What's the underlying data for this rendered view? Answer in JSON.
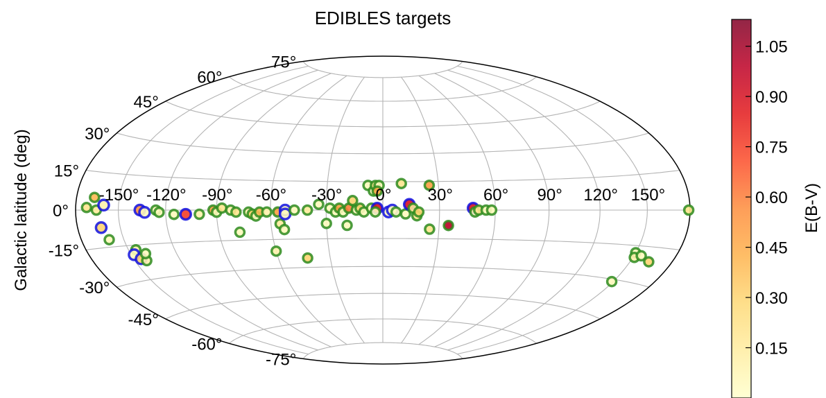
{
  "chart_data": {
    "type": "scatter",
    "projection": "hammer",
    "title": "EDIBLES targets",
    "ylabel": "Galactic latitude (deg)",
    "xlabel": "",
    "grid": true,
    "lon_tick_labels": [
      "-150°",
      "-120°",
      "-90°",
      "-60°",
      "-30°",
      "0°",
      "30°",
      "60°",
      "90°",
      "120°",
      "150°"
    ],
    "lat_tick_labels": [
      "-75°",
      "-60°",
      "-45°",
      "-30°",
      "-15°",
      "0°",
      "15°",
      "30°",
      "45°",
      "60°",
      "75°"
    ],
    "colorbar": {
      "label": "E(B-V)",
      "range": [
        0.0,
        1.13
      ],
      "colormap": "YlOrRd",
      "ticks": [
        "0.15",
        "0.30",
        "0.45",
        "0.60",
        "0.75",
        "0.90",
        "1.05"
      ],
      "colors": [
        "#ffffcc",
        "#ffeda0",
        "#fed976",
        "#feb24c",
        "#fd8d3c",
        "#fc4e2a",
        "#e31a1c",
        "#bd0026",
        "#800026"
      ]
    },
    "edge_colors": {
      "green": "#2e8b1f",
      "blue": "#1010e0"
    },
    "points": [
      {
        "lon": -172,
        "lat": 1,
        "ebv": 0.2,
        "edge": "green"
      },
      {
        "lon": -167,
        "lat": 5,
        "ebv": 0.4,
        "edge": "green"
      },
      {
        "lon": -165,
        "lat": 0,
        "ebv": 0.15,
        "edge": "green"
      },
      {
        "lon": -160,
        "lat": 2,
        "ebv": 0.1,
        "edge": "blue"
      },
      {
        "lon": -163,
        "lat": -7,
        "ebv": 0.3,
        "edge": "blue"
      },
      {
        "lon": -160,
        "lat": -12,
        "ebv": 0.05,
        "edge": "green"
      },
      {
        "lon": -145,
        "lat": -17,
        "ebv": 0.1,
        "edge": "green"
      },
      {
        "lon": -148,
        "lat": -19,
        "ebv": 0.05,
        "edge": "blue"
      },
      {
        "lon": -145,
        "lat": -21,
        "ebv": 0.3,
        "edge": "blue"
      },
      {
        "lon": -142,
        "lat": -22,
        "ebv": 0.1,
        "edge": "green"
      },
      {
        "lon": -140,
        "lat": -19,
        "ebv": 0.05,
        "edge": "green"
      },
      {
        "lon": -136,
        "lat": 0,
        "ebv": 0.55,
        "edge": "blue"
      },
      {
        "lon": -133,
        "lat": -1,
        "ebv": 0.05,
        "edge": "blue"
      },
      {
        "lon": -126,
        "lat": 0,
        "ebv": 0.05,
        "edge": "green"
      },
      {
        "lon": -124,
        "lat": -1,
        "ebv": 0.05,
        "edge": "green"
      },
      {
        "lon": -115,
        "lat": -2,
        "ebv": 0.05,
        "edge": "green"
      },
      {
        "lon": -108,
        "lat": -2,
        "ebv": 0.75,
        "edge": "blue"
      },
      {
        "lon": -100,
        "lat": -2,
        "ebv": 0.1,
        "edge": "green"
      },
      {
        "lon": -92,
        "lat": 0,
        "ebv": 0.5,
        "edge": "green"
      },
      {
        "lon": -90,
        "lat": -1,
        "ebv": 0.05,
        "edge": "green"
      },
      {
        "lon": -87,
        "lat": 1,
        "ebv": 0.2,
        "edge": "green"
      },
      {
        "lon": -82,
        "lat": 0,
        "ebv": 0.1,
        "edge": "green"
      },
      {
        "lon": -79,
        "lat": -1,
        "ebv": 0.2,
        "edge": "green"
      },
      {
        "lon": -78,
        "lat": -11,
        "ebv": 0.05,
        "edge": "green"
      },
      {
        "lon": -72,
        "lat": -1,
        "ebv": 0.1,
        "edge": "green"
      },
      {
        "lon": -70,
        "lat": -2,
        "ebv": 0.3,
        "edge": "green"
      },
      {
        "lon": -68,
        "lat": -3,
        "ebv": 0.05,
        "edge": "green"
      },
      {
        "lon": -66,
        "lat": -1,
        "ebv": 0.4,
        "edge": "green"
      },
      {
        "lon": -62,
        "lat": -1,
        "ebv": 0.1,
        "edge": "green"
      },
      {
        "lon": -60,
        "lat": -21,
        "ebv": 0.1,
        "edge": "green"
      },
      {
        "lon": -56,
        "lat": -1,
        "ebv": 0.5,
        "edge": "green"
      },
      {
        "lon": -55,
        "lat": -7,
        "ebv": 0.15,
        "edge": "green"
      },
      {
        "lon": -53,
        "lat": -10,
        "ebv": 0.05,
        "edge": "green"
      },
      {
        "lon": -52,
        "lat": 0,
        "ebv": 0.05,
        "edge": "blue"
      },
      {
        "lon": -52,
        "lat": -2,
        "ebv": 0.05,
        "edge": "blue"
      },
      {
        "lon": -47,
        "lat": 0,
        "ebv": 0.05,
        "edge": "green"
      },
      {
        "lon": -43,
        "lat": -25,
        "ebv": 0.3,
        "edge": "green"
      },
      {
        "lon": -40,
        "lat": 0,
        "ebv": 0.15,
        "edge": "green"
      },
      {
        "lon": -34,
        "lat": 3,
        "ebv": 0.05,
        "edge": "green"
      },
      {
        "lon": -30,
        "lat": -7,
        "ebv": 0.05,
        "edge": "green"
      },
      {
        "lon": -28,
        "lat": 1,
        "ebv": 0.05,
        "edge": "green"
      },
      {
        "lon": -25,
        "lat": -1,
        "ebv": 0.05,
        "edge": "green"
      },
      {
        "lon": -23,
        "lat": 1,
        "ebv": 0.5,
        "edge": "green"
      },
      {
        "lon": -21,
        "lat": -1,
        "ebv": 0.05,
        "edge": "green"
      },
      {
        "lon": -19,
        "lat": -8,
        "ebv": 0.05,
        "edge": "green"
      },
      {
        "lon": -18,
        "lat": 1,
        "ebv": 0.6,
        "edge": "green"
      },
      {
        "lon": -16,
        "lat": 5,
        "ebv": 0.3,
        "edge": "green"
      },
      {
        "lon": -14,
        "lat": 0,
        "ebv": 0.05,
        "edge": "green"
      },
      {
        "lon": -12,
        "lat": 1,
        "ebv": 0.3,
        "edge": "green"
      },
      {
        "lon": -10,
        "lat": -1,
        "ebv": 0.05,
        "edge": "green"
      },
      {
        "lon": -8,
        "lat": 13,
        "ebv": 0.05,
        "edge": "green"
      },
      {
        "lon": -6,
        "lat": 1,
        "ebv": 0.05,
        "edge": "green"
      },
      {
        "lon": -5,
        "lat": 10,
        "ebv": 0.05,
        "edge": "green"
      },
      {
        "lon": -4,
        "lat": 13,
        "ebv": 0.2,
        "edge": "green"
      },
      {
        "lon": -2,
        "lat": 13,
        "ebv": 0.05,
        "edge": "green"
      },
      {
        "lon": -3,
        "lat": 1,
        "ebv": 0.9,
        "edge": "blue"
      },
      {
        "lon": -4,
        "lat": -1,
        "ebv": 0.05,
        "edge": "green"
      },
      {
        "lon": -3,
        "lat": 10,
        "ebv": 0.45,
        "edge": "green"
      },
      {
        "lon": 3,
        "lat": -1,
        "ebv": 0.05,
        "edge": "blue"
      },
      {
        "lon": 5,
        "lat": 0,
        "ebv": 0.05,
        "edge": "blue"
      },
      {
        "lon": 7,
        "lat": -1,
        "ebv": 0.05,
        "edge": "green"
      },
      {
        "lon": 10,
        "lat": 14,
        "ebv": 0.2,
        "edge": "green"
      },
      {
        "lon": 12,
        "lat": -2,
        "ebv": 0.05,
        "edge": "green"
      },
      {
        "lon": 14,
        "lat": 3,
        "ebv": 0.9,
        "edge": "blue"
      },
      {
        "lon": 16,
        "lat": 1,
        "ebv": 0.2,
        "edge": "green"
      },
      {
        "lon": 18,
        "lat": -3,
        "ebv": 0.2,
        "edge": "green"
      },
      {
        "lon": 19,
        "lat": -1,
        "ebv": 0.3,
        "edge": "green"
      },
      {
        "lon": 25,
        "lat": -10,
        "ebv": 0.2,
        "edge": "green"
      },
      {
        "lon": 25,
        "lat": 13,
        "ebv": 0.5,
        "edge": "green"
      },
      {
        "lon": 35,
        "lat": -8,
        "ebv": 1.0,
        "edge": "green"
      },
      {
        "lon": 48,
        "lat": 1,
        "ebv": 0.9,
        "edge": "blue"
      },
      {
        "lon": 49,
        "lat": -1,
        "ebv": 0.05,
        "edge": "green"
      },
      {
        "lon": 51,
        "lat": 0,
        "ebv": 0.2,
        "edge": "green"
      },
      {
        "lon": 55,
        "lat": 0,
        "ebv": 0.05,
        "edge": "green"
      },
      {
        "lon": 58,
        "lat": 0,
        "ebv": 0.05,
        "edge": "green"
      },
      {
        "lon": 150,
        "lat": -18,
        "ebv": 0.05,
        "edge": "green"
      },
      {
        "lon": 151,
        "lat": -20,
        "ebv": 0.1,
        "edge": "green"
      },
      {
        "lon": 155,
        "lat": -19,
        "ebv": 0.05,
        "edge": "green"
      },
      {
        "lon": 149,
        "lat": -31,
        "ebv": 0.05,
        "edge": "green"
      },
      {
        "lon": 163,
        "lat": -21,
        "ebv": 0.3,
        "edge": "green"
      },
      {
        "lon": 179,
        "lat": 0,
        "ebv": 0.2,
        "edge": "green"
      }
    ]
  }
}
